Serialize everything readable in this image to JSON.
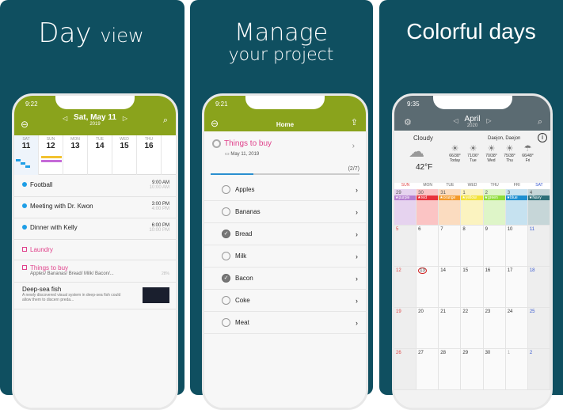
{
  "panels": [
    {
      "headline": [
        "Day",
        "view"
      ]
    },
    {
      "headline": [
        "Manage",
        "your project"
      ]
    },
    {
      "headline": [
        "Colorful days"
      ]
    }
  ],
  "day_view": {
    "time": "9:22",
    "title": "Sat, May 11",
    "year": "2019",
    "days": [
      {
        "dow": "SAT",
        "num": "11"
      },
      {
        "dow": "SUN",
        "num": "12"
      },
      {
        "dow": "MON",
        "num": "13"
      },
      {
        "dow": "TUE",
        "num": "14"
      },
      {
        "dow": "WED",
        "num": "15"
      },
      {
        "dow": "THU",
        "num": "16"
      }
    ],
    "events": [
      {
        "title": "Football",
        "start": "9:00 AM",
        "end": "10:00 AM"
      },
      {
        "title": "Meeting with Dr. Kwon",
        "start": "3:00 PM",
        "end": "4:00 PM"
      },
      {
        "title": "Dinner with Kelly",
        "start": "6:00 PM",
        "end": "10:00 PM"
      }
    ],
    "todo1": "Laundry",
    "todo2": {
      "title": "Things to buy",
      "sub": "Apples/ Bananas/ Bread/ Milk/ Bacon/...",
      "pct": "28%"
    },
    "note": {
      "title": "Deep-sea fish",
      "body": "A newly discovered visual system in deep-sea fish could allow them to discern preda..."
    },
    "accent": "#8aa31c"
  },
  "project": {
    "time": "9:21",
    "title": "Home",
    "task": "Things to buy",
    "date": "May 11, 2019",
    "count": "(2/7)",
    "progress": 0.286,
    "items": [
      {
        "label": "Apples",
        "done": false
      },
      {
        "label": "Bananas",
        "done": false
      },
      {
        "label": "Bread",
        "done": true
      },
      {
        "label": "Milk",
        "done": false
      },
      {
        "label": "Bacon",
        "done": true
      },
      {
        "label": "Coke",
        "done": false
      },
      {
        "label": "Meat",
        "done": false
      }
    ]
  },
  "calendar": {
    "time": "9:35",
    "month": "April",
    "year": "2020",
    "weather": {
      "condition": "Cloudy",
      "location": "Daejon, Daejon",
      "temp": "42°F",
      "forecast": [
        {
          "t": "66/38°",
          "d": "Today"
        },
        {
          "t": "71/36°",
          "d": "Tue"
        },
        {
          "t": "70/38°",
          "d": "Wed"
        },
        {
          "t": "75/38°",
          "d": "Thu"
        },
        {
          "t": "66/48°",
          "d": "Fri"
        }
      ]
    },
    "weekdays": [
      "SUN",
      "MON",
      "TUE",
      "WED",
      "THU",
      "FRI",
      "SAT"
    ],
    "first_week": [
      {
        "n": "29",
        "label": "★purple",
        "c": "#b57fd0",
        "bg": "#e6d3ef"
      },
      {
        "n": "30",
        "label": "★red",
        "c": "#e8323c",
        "bg": "#fbc4c4"
      },
      {
        "n": "31",
        "label": "★orange",
        "c": "#f39a2c",
        "bg": "#fbdcc0"
      },
      {
        "n": "1",
        "label": "★yellow",
        "c": "#f2e23a",
        "bg": "#fbf3c0"
      },
      {
        "n": "2",
        "label": "★green",
        "c": "#8fdc3a",
        "bg": "#def5c8"
      },
      {
        "n": "3",
        "label": "★blue",
        "c": "#1e8fd0",
        "bg": "#c6e2f0"
      },
      {
        "n": "4",
        "label": "★Navy",
        "c": "#2e6f78",
        "bg": "#c6d6d8"
      }
    ],
    "weeks": [
      [
        "5",
        "6",
        "7",
        "8",
        "9",
        "10",
        "11"
      ],
      [
        "12",
        "13",
        "14",
        "15",
        "16",
        "17",
        "18"
      ],
      [
        "19",
        "20",
        "21",
        "22",
        "23",
        "24",
        "25"
      ],
      [
        "26",
        "27",
        "28",
        "29",
        "30",
        "1",
        "2"
      ]
    ],
    "today": "13"
  }
}
